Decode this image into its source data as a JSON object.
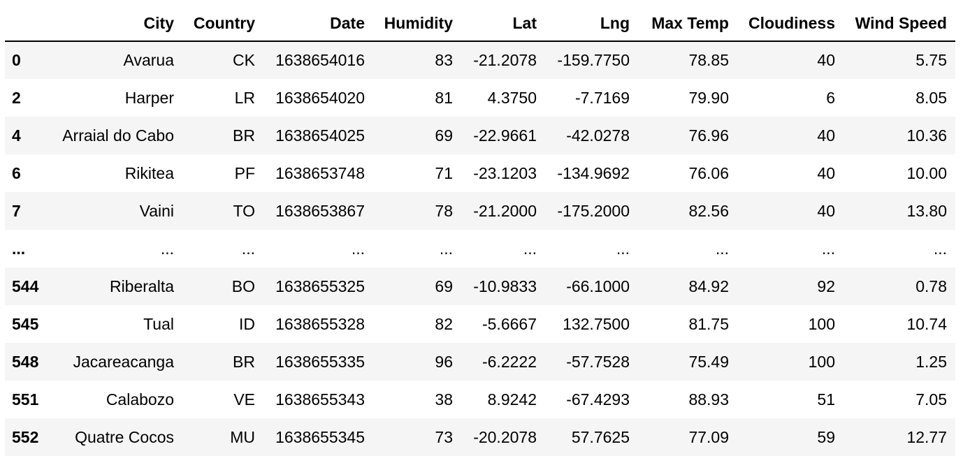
{
  "table": {
    "columns": [
      "",
      "City",
      "Country",
      "Date",
      "Humidity",
      "Lat",
      "Lng",
      "Max Temp",
      "Cloudiness",
      "Wind Speed"
    ],
    "rows": [
      {
        "index": "0",
        "cells": [
          "Avarua",
          "CK",
          "1638654016",
          "83",
          "-21.2078",
          "-159.7750",
          "78.85",
          "40",
          "5.75"
        ]
      },
      {
        "index": "2",
        "cells": [
          "Harper",
          "LR",
          "1638654020",
          "81",
          "4.3750",
          "-7.7169",
          "79.90",
          "6",
          "8.05"
        ]
      },
      {
        "index": "4",
        "cells": [
          "Arraial do Cabo",
          "BR",
          "1638654025",
          "69",
          "-22.9661",
          "-42.0278",
          "76.96",
          "40",
          "10.36"
        ]
      },
      {
        "index": "6",
        "cells": [
          "Rikitea",
          "PF",
          "1638653748",
          "71",
          "-23.1203",
          "-134.9692",
          "76.06",
          "40",
          "10.00"
        ]
      },
      {
        "index": "7",
        "cells": [
          "Vaini",
          "TO",
          "1638653867",
          "78",
          "-21.2000",
          "-175.2000",
          "82.56",
          "40",
          "13.80"
        ]
      },
      {
        "index": "...",
        "cells": [
          "...",
          "...",
          "...",
          "...",
          "...",
          "...",
          "...",
          "...",
          "..."
        ]
      },
      {
        "index": "544",
        "cells": [
          "Riberalta",
          "BO",
          "1638655325",
          "69",
          "-10.9833",
          "-66.1000",
          "84.92",
          "92",
          "0.78"
        ]
      },
      {
        "index": "545",
        "cells": [
          "Tual",
          "ID",
          "1638655328",
          "82",
          "-5.6667",
          "132.7500",
          "81.75",
          "100",
          "10.74"
        ]
      },
      {
        "index": "548",
        "cells": [
          "Jacareacanga",
          "BR",
          "1638655335",
          "96",
          "-6.2222",
          "-57.7528",
          "75.49",
          "100",
          "1.25"
        ]
      },
      {
        "index": "551",
        "cells": [
          "Calabozo",
          "VE",
          "1638655343",
          "38",
          "8.9242",
          "-67.4293",
          "88.93",
          "51",
          "7.05"
        ]
      },
      {
        "index": "552",
        "cells": [
          "Quatre Cocos",
          "MU",
          "1638655345",
          "73",
          "-20.2078",
          "57.7625",
          "77.09",
          "59",
          "12.77"
        ]
      }
    ]
  }
}
